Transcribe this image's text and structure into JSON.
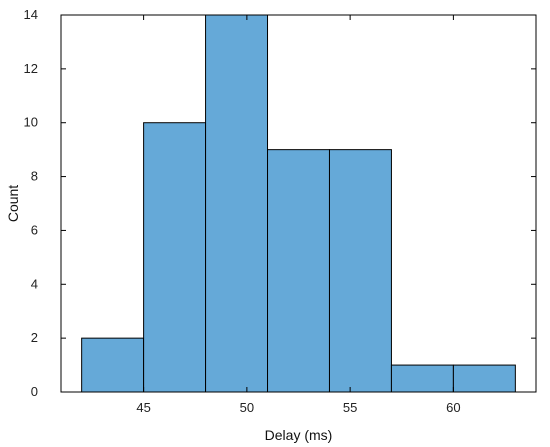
{
  "chart_data": {
    "type": "bar",
    "subtype": "histogram",
    "xlabel": "Delay (ms)",
    "ylabel": "Count",
    "xlim": [
      41,
      64
    ],
    "ylim": [
      0,
      14
    ],
    "x_ticks": [
      45,
      50,
      55,
      60
    ],
    "y_ticks": [
      0,
      2,
      4,
      6,
      8,
      10,
      12,
      14
    ],
    "bins": [
      {
        "start": 42.0,
        "end": 45.0,
        "count": 2
      },
      {
        "start": 45.0,
        "end": 48.0,
        "count": 10
      },
      {
        "start": 48.0,
        "end": 51.0,
        "count": 14
      },
      {
        "start": 51.0,
        "end": 54.0,
        "count": 9
      },
      {
        "start": 54.0,
        "end": 57.0,
        "count": 9
      },
      {
        "start": 57.0,
        "end": 60.0,
        "count": 1
      },
      {
        "start": 60.0,
        "end": 63.0,
        "count": 1
      }
    ],
    "bar_color": "#65a9d8",
    "edge_color": "#000000",
    "grid": false,
    "legend": "none"
  }
}
